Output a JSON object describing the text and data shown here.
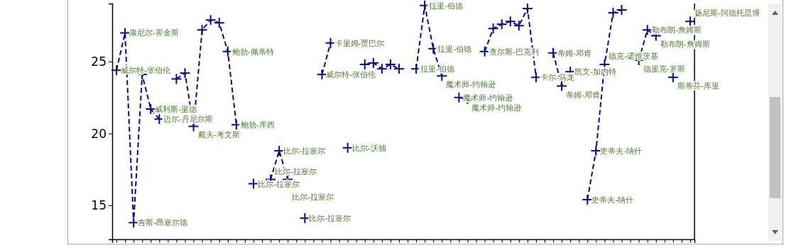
{
  "chart_data": {
    "type": "line",
    "line_style": "dashed",
    "marker": "cross",
    "tick_labels": "y",
    "categories": [
      null,
      null,
      null,
      null,
      null,
      null,
      null,
      null,
      null,
      null,
      null,
      null,
      null,
      null,
      null,
      null,
      null,
      null,
      null,
      null,
      null,
      null,
      null,
      null,
      null,
      null,
      null,
      null,
      null,
      null,
      null,
      null,
      null,
      null,
      null,
      null,
      null,
      null,
      null,
      null,
      null,
      null,
      null,
      null,
      null,
      null,
      null,
      null,
      null,
      null,
      null,
      null,
      null,
      null,
      null,
      null,
      null,
      null,
      null,
      null,
      null,
      null,
      null,
      null,
      null,
      null,
      null,
      null
    ],
    "ylim": [
      12.64,
      29.04
    ],
    "yticks": [
      15,
      20,
      25
    ],
    "series": [
      {
        "color": "#0a0a9a",
        "values": [
          24.4,
          27.0,
          13.8,
          24.1,
          21.7,
          21.0,
          null,
          23.8,
          24.2,
          20.5,
          27.2,
          27.9,
          27.7,
          25.7,
          20.6,
          null,
          16.5,
          null,
          16.8,
          18.8,
          16.8,
          null,
          14.1,
          null,
          24.1,
          26.3,
          null,
          19.0,
          null,
          24.8,
          24.9,
          24.5,
          24.8,
          24.5,
          null,
          24.5,
          28.9,
          25.9,
          24.0,
          null,
          22.5,
          22.4,
          null,
          25.7,
          27.3,
          27.6,
          27.8,
          27.5,
          28.7,
          23.9,
          null,
          25.6,
          23.3,
          24.3,
          null,
          15.4,
          18.8,
          24.8,
          28.4,
          28.6,
          null,
          25.1,
          27.2,
          26.8,
          null,
          23.9,
          null,
          27.8
        ],
        "value_labels": [
          "威尔特-张伯伦",
          "康尼尔-霍金斯",
          "吉斯-昂塞尔德",
          null,
          "威利斯-里德",
          "迈尔-丹尼尔斯",
          null,
          null,
          null,
          "戴夫-考文斯",
          null,
          null,
          null,
          "鲍勃-佩蒂特",
          "鲍勃-库西",
          null,
          "比尔-拉塞尔",
          null,
          "比尔-拉塞尔",
          "比尔-拉塞尔",
          "比尔-拉塞尔",
          null,
          "比尔-拉塞尔",
          null,
          "威尔特-张伯伦",
          "卡里姆-贾巴尔",
          null,
          "比尔-沃顿",
          null,
          null,
          null,
          null,
          null,
          null,
          null,
          "拉里-伯德",
          "拉里-伯德",
          "拉里-伯德",
          "魔术师-约翰逊",
          null,
          "魔术师-约翰逊",
          "魔术师-约翰逊",
          null,
          "查尔斯-巴克利",
          null,
          null,
          null,
          null,
          null,
          "卡尔-马龙",
          null,
          "蒂姆-邓肯",
          "蒂姆-邓肯",
          "凯文-加内特",
          null,
          "史蒂夫-纳什",
          "史蒂夫-纳什",
          "德克-诺维茨基",
          null,
          null,
          null,
          "德里克-罗斯",
          "勒布朗-詹姆斯",
          "勒布朗-詹姆斯",
          null,
          "斯蒂芬-库里",
          null,
          "扬尼斯-阿德托昆博"
        ]
      }
    ]
  }
}
